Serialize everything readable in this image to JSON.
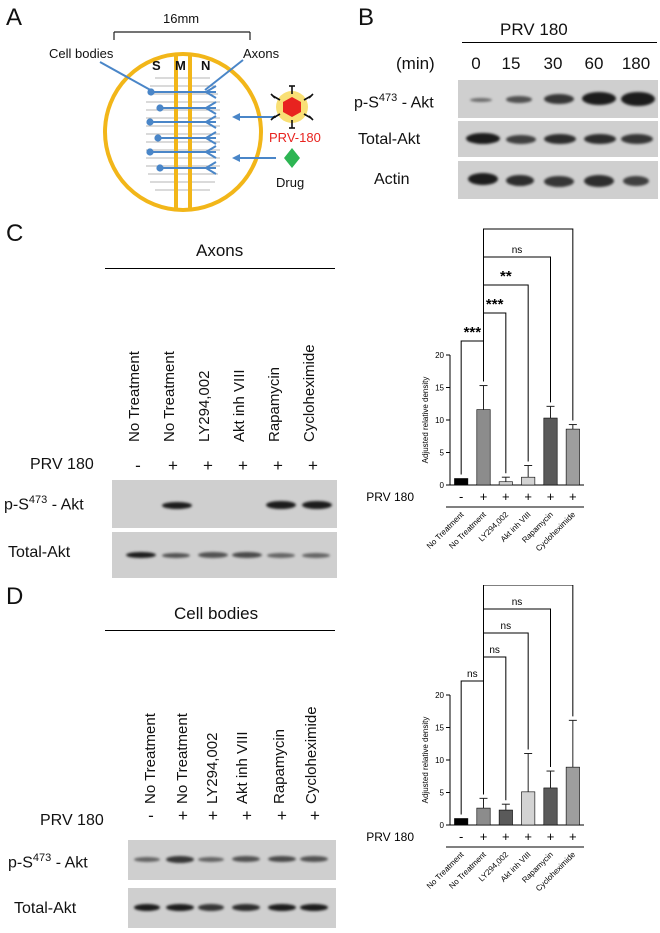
{
  "panels": {
    "a": {
      "letter": "A",
      "dish": {
        "size": "16mm",
        "compartments": [
          "S",
          "M",
          "N"
        ],
        "cell_bodies_label": "Cell bodies",
        "axons_label": "Axons"
      },
      "virus_label": "PRV-180",
      "drug_label": "Drug"
    },
    "b": {
      "letter": "B",
      "title": "PRV 180",
      "time_unit": "(min)",
      "time_points": [
        "0",
        "15",
        "30",
        "60",
        "180"
      ],
      "rows": [
        "p-S473 - Akt",
        "Total-Akt",
        "Actin"
      ],
      "row1_prefix": "p-S",
      "row1_sup": "473",
      "row1_suffix": " - Akt",
      "row2": "Total-Akt",
      "row3": "Actin"
    },
    "c": {
      "letter": "C",
      "header": "Axons",
      "lanes": [
        "No Treatment",
        "No Treatment",
        "LY294,002",
        "Akt inh VIII",
        "Rapamycin",
        "Cycloheximide"
      ],
      "prv_label": "PRV 180",
      "prv_signs": [
        "-",
        "+",
        "+",
        "+",
        "+",
        "+"
      ],
      "row1_prefix": "p-S",
      "row1_sup": "473",
      "row1_suffix": " - Akt",
      "row2": "Total-Akt"
    },
    "d": {
      "letter": "D",
      "header": "Cell bodies",
      "lanes": [
        "No Treatment",
        "No Treatment",
        "LY294,002",
        "Akt inh VIII",
        "Rapamycin",
        "Cycloheximide"
      ],
      "prv_label": "PRV 180",
      "prv_signs": [
        "-",
        "+",
        "+",
        "+",
        "+",
        "+"
      ],
      "row1_prefix": "p-S",
      "row1_sup": "473",
      "row1_suffix": " - Akt",
      "row2": "Total-Akt"
    }
  },
  "colors": {
    "gold": "#f2b619",
    "blue": "#4a86c8",
    "virus_red": "#e8231f",
    "drug_green": "#2db553",
    "bar_black": "#000000",
    "bar_gray": "#8c8c8c",
    "bar_light": "#d3d3d3",
    "bar_dark": "#5a5a5a",
    "bar_mid": "#9e9e9e"
  },
  "chart_data": [
    {
      "type": "bar",
      "panel": "C",
      "categories": [
        "No Treatment",
        "No Treatment",
        "LY294,002",
        "Akt inh VIII",
        "Rapamycin",
        "Cycloheximide"
      ],
      "values": [
        1.0,
        11.6,
        0.5,
        1.2,
        10.3,
        8.6
      ],
      "errors": [
        0.0,
        3.7,
        0.7,
        1.8,
        1.8,
        0.7
      ],
      "bar_colors": [
        "#000000",
        "#8c8c8c",
        "#d3d3d3",
        "#d3d3d3",
        "#5a5a5a",
        "#9e9e9e"
      ],
      "prv_signs": [
        "-",
        "+",
        "+",
        "+",
        "+",
        "+"
      ],
      "prv_label": "PRV 180",
      "ylabel": "Adjusted relative density",
      "ylim": [
        0,
        20
      ],
      "yticks": [
        "0",
        "5",
        "10",
        "15",
        "20"
      ],
      "significance": [
        {
          "from": 0,
          "to": 1,
          "label": "***"
        },
        {
          "from": 1,
          "to": 2,
          "label": "***"
        },
        {
          "from": 1,
          "to": 3,
          "label": "**"
        },
        {
          "from": 1,
          "to": 4,
          "label": "ns"
        },
        {
          "from": 1,
          "to": 5,
          "label": "ns"
        }
      ]
    },
    {
      "type": "bar",
      "panel": "D",
      "categories": [
        "No Treatment",
        "No Treatment",
        "LY294,002",
        "Akt inh VIII",
        "Rapamycin",
        "Cycloheximide"
      ],
      "values": [
        1.0,
        2.6,
        2.3,
        5.1,
        5.7,
        8.9
      ],
      "errors": [
        0.0,
        1.5,
        0.9,
        5.9,
        2.6,
        7.2
      ],
      "bar_colors": [
        "#000000",
        "#8c8c8c",
        "#5a5a5a",
        "#d3d3d3",
        "#5a5a5a",
        "#9e9e9e"
      ],
      "prv_signs": [
        "-",
        "+",
        "+",
        "+",
        "+",
        "+"
      ],
      "prv_label": "PRV 180",
      "ylabel": "Adjusted relative density",
      "ylim": [
        0,
        20
      ],
      "yticks": [
        "0",
        "5",
        "10",
        "15",
        "20"
      ],
      "significance": [
        {
          "from": 0,
          "to": 1,
          "label": "ns"
        },
        {
          "from": 1,
          "to": 2,
          "label": "ns"
        },
        {
          "from": 1,
          "to": 3,
          "label": "ns"
        },
        {
          "from": 1,
          "to": 4,
          "label": "ns"
        },
        {
          "from": 1,
          "to": 5,
          "label": "ns"
        }
      ]
    }
  ]
}
